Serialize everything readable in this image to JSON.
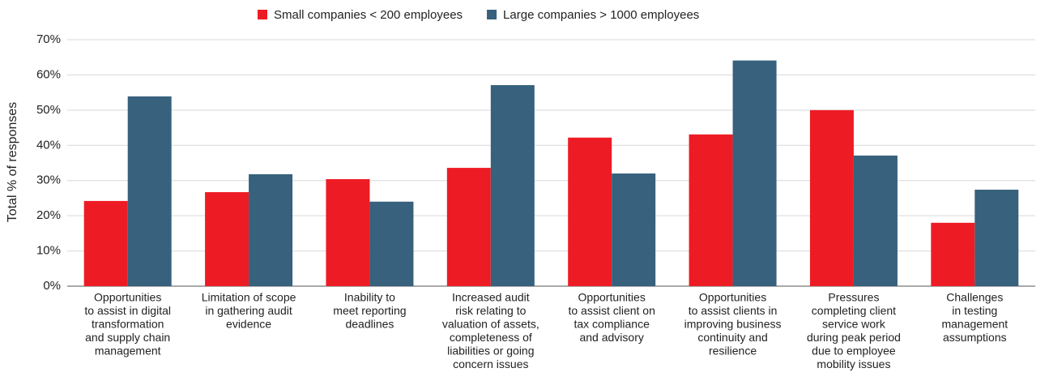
{
  "chart_data": {
    "type": "bar",
    "y_label": "Total % of responses",
    "categories": [
      [
        "Opportunities",
        "to assist in digital",
        "transformation",
        "and supply chain",
        "management"
      ],
      [
        "Limitation of scope",
        "in gathering audit",
        "evidence"
      ],
      [
        "Inability to",
        "meet reporting",
        "deadlines"
      ],
      [
        "Increased audit",
        "risk relating to",
        "valuation of assets,",
        "completeness of",
        "liabilities or going",
        "concern issues"
      ],
      [
        "Opportunities",
        "to assist client on",
        "tax compliance",
        "and advisory"
      ],
      [
        "Opportunities",
        "to assist clients in",
        "improving business",
        "continuity and",
        "resilience"
      ],
      [
        "Pressures",
        "completing client",
        "service work",
        "during peak period",
        "due to employee",
        "mobility issues"
      ],
      [
        "Challenges",
        "in testing",
        "management",
        "assumptions"
      ]
    ],
    "series": [
      {
        "name": "Small companies < 200 employees",
        "color": "#ed1c24",
        "values": [
          24.2,
          26.7,
          30.4,
          33.6,
          42.2,
          43.1,
          50,
          18
        ]
      },
      {
        "name": "Large companies > 1000 employees",
        "color": "#37617d",
        "values": [
          53.9,
          31.8,
          24,
          57.1,
          32,
          64.1,
          37.1,
          27.4
        ]
      }
    ],
    "ylim": [
      0,
      70
    ],
    "yticks": [
      {
        "value": 0,
        "label": "0%"
      },
      {
        "value": 10,
        "label": "10%"
      },
      {
        "value": 20,
        "label": "20%"
      },
      {
        "value": 30,
        "label": "30%"
      },
      {
        "value": 40,
        "label": "40%"
      },
      {
        "value": 50,
        "label": "50%"
      },
      {
        "value": 60,
        "label": "60%"
      },
      {
        "value": 70,
        "label": "70%"
      }
    ],
    "grid": true,
    "legend": "top"
  }
}
